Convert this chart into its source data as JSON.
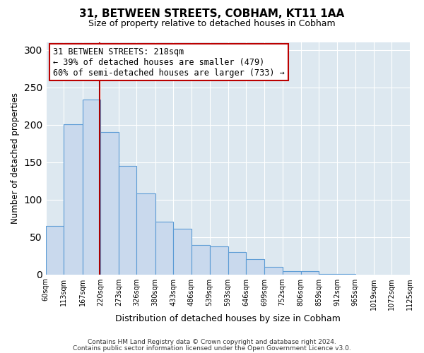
{
  "title": "31, BETWEEN STREETS, COBHAM, KT11 1AA",
  "subtitle": "Size of property relative to detached houses in Cobham",
  "xlabel": "Distribution of detached houses by size in Cobham",
  "ylabel": "Number of detached properties",
  "bar_edges": [
    60,
    113,
    167,
    220,
    273,
    326,
    380,
    433,
    486,
    539,
    593,
    646,
    699,
    752,
    806,
    859,
    912,
    965,
    1019,
    1072,
    1125
  ],
  "bar_heights": [
    65,
    201,
    234,
    190,
    145,
    108,
    70,
    61,
    39,
    37,
    30,
    20,
    10,
    4,
    4,
    1,
    1,
    0,
    0,
    0,
    0
  ],
  "bar_color": "#c9d9ed",
  "bar_edge_color": "#5b9bd5",
  "bar_linewidth": 0.8,
  "property_line_x": 218,
  "property_line_color": "#aa0000",
  "annotation_title": "31 BETWEEN STREETS: 218sqm",
  "annotation_line1": "← 39% of detached houses are smaller (479)",
  "annotation_line2": "60% of semi-detached houses are larger (733) →",
  "annotation_box_color": "#ffffff",
  "annotation_border_color": "#bb0000",
  "ylim": [
    0,
    310
  ],
  "yticks": [
    0,
    50,
    100,
    150,
    200,
    250,
    300
  ],
  "bg_color": "#ffffff",
  "plot_bg_color": "#dde8f0",
  "grid_color": "#ffffff",
  "footer_line1": "Contains HM Land Registry data © Crown copyright and database right 2024.",
  "footer_line2": "Contains public sector information licensed under the Open Government Licence v3.0."
}
